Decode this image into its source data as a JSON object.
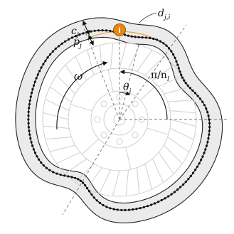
{
  "figure": {
    "labels": {
      "d_label": "d",
      "d_sub": "j,i",
      "c_label": "c",
      "c_sub": "j",
      "p_label": "p",
      "p_sub": "j",
      "omega_label": "ω",
      "angle_label": "π/n",
      "angle_sub": "l",
      "theta_label": "θ",
      "theta_sub": "j"
    },
    "marker": {
      "text": "i",
      "color": "#e8870e"
    },
    "colors": {
      "band_fill": "#ebebeb",
      "band_stroke": "#222222",
      "trajectory": "#111111",
      "gear_lines": "#cfcfcf",
      "dashed": "#777777",
      "orange_arc": "#f0a040"
    }
  }
}
